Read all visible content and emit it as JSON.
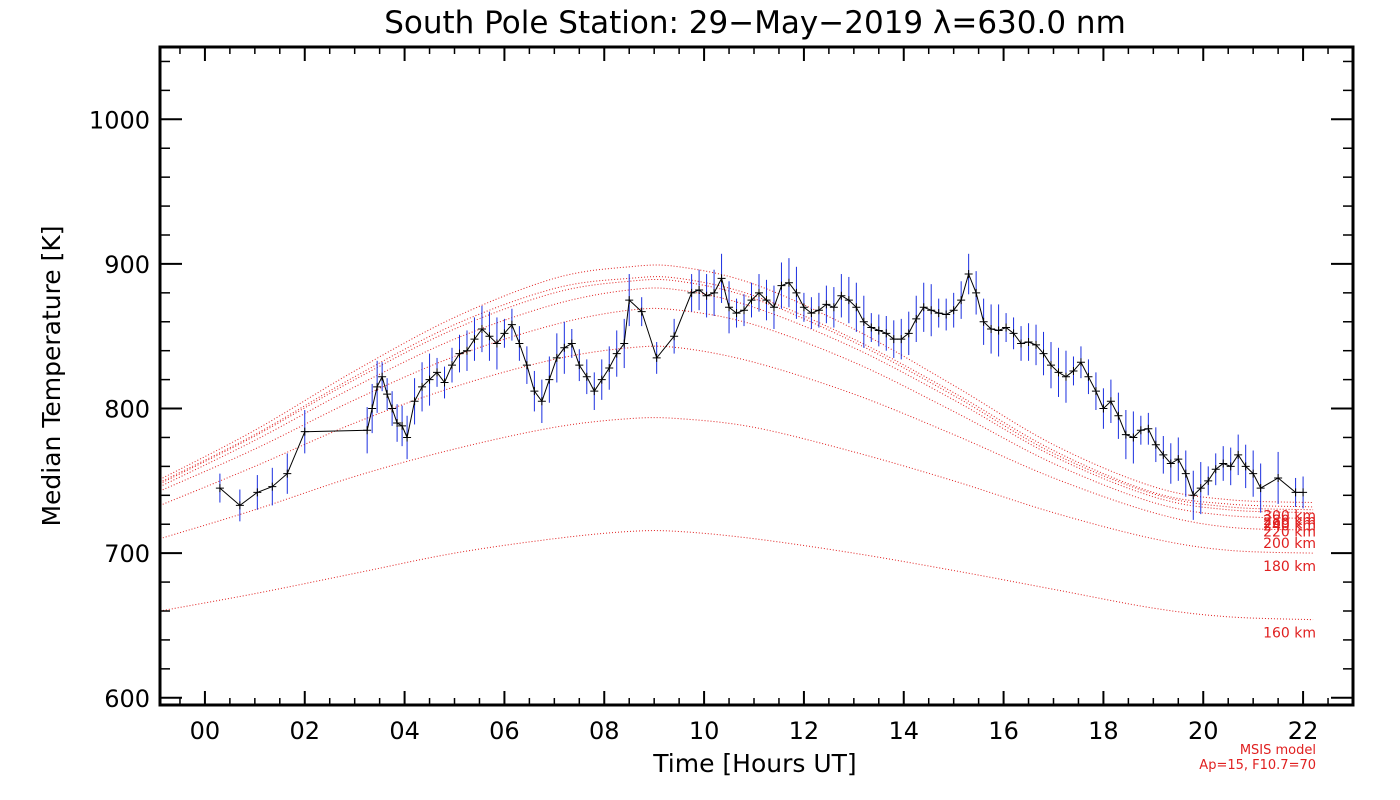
{
  "chart_data": {
    "type": "line",
    "title": "South Pole Station: 29−May−2019 λ=630.0 nm",
    "xlabel": "Time [Hours UT]",
    "ylabel": "Median Temperature [K]",
    "xlim": [
      -0.9,
      23.0
    ],
    "ylim": [
      595,
      1050
    ],
    "x_ticks": [
      0,
      2,
      4,
      6,
      8,
      10,
      12,
      14,
      16,
      18,
      20,
      22
    ],
    "x_tick_labels": [
      "00",
      "02",
      "04",
      "06",
      "08",
      "10",
      "12",
      "14",
      "16",
      "18",
      "20",
      "22"
    ],
    "y_ticks": [
      600,
      700,
      800,
      900,
      1000
    ],
    "y_tick_labels": [
      "600",
      "700",
      "800",
      "900",
      "1000"
    ],
    "colors": {
      "data": "#000000",
      "error_bars": "#1a2ee0",
      "model": "#e02020"
    },
    "observed": {
      "x": [
        0.3,
        0.7,
        1.05,
        1.35,
        1.65,
        2.0,
        3.25,
        3.35,
        3.45,
        3.55,
        3.65,
        3.75,
        3.85,
        3.95,
        4.05,
        4.2,
        4.35,
        4.5,
        4.65,
        4.8,
        4.95,
        5.1,
        5.25,
        5.4,
        5.55,
        5.7,
        5.85,
        6.0,
        6.15,
        6.3,
        6.45,
        6.6,
        6.75,
        6.9,
        7.05,
        7.2,
        7.35,
        7.5,
        7.65,
        7.8,
        7.95,
        8.1,
        8.25,
        8.4,
        8.5,
        8.75,
        9.05,
        9.4,
        9.75,
        9.9,
        10.05,
        10.2,
        10.35,
        10.5,
        10.65,
        10.8,
        10.95,
        11.1,
        11.25,
        11.4,
        11.55,
        11.7,
        11.85,
        12.0,
        12.15,
        12.3,
        12.45,
        12.6,
        12.75,
        12.9,
        13.05,
        13.2,
        13.35,
        13.5,
        13.65,
        13.8,
        13.95,
        14.1,
        14.25,
        14.4,
        14.55,
        14.7,
        14.85,
        15.0,
        15.15,
        15.3,
        15.45,
        15.6,
        15.75,
        15.9,
        16.05,
        16.2,
        16.35,
        16.5,
        16.65,
        16.8,
        16.95,
        17.1,
        17.25,
        17.4,
        17.55,
        17.7,
        17.85,
        18.0,
        18.15,
        18.3,
        18.45,
        18.6,
        18.75,
        18.9,
        19.05,
        19.2,
        19.35,
        19.5,
        19.65,
        19.8,
        19.95,
        20.1,
        20.25,
        20.4,
        20.55,
        20.7,
        20.85,
        21.0,
        21.15,
        21.5,
        21.85,
        22.0
      ],
      "y": [
        745,
        733,
        742,
        746,
        755,
        784,
        785,
        800,
        815,
        822,
        810,
        800,
        790,
        788,
        780,
        805,
        815,
        820,
        825,
        818,
        830,
        838,
        840,
        848,
        855,
        850,
        845,
        852,
        858,
        845,
        830,
        812,
        805,
        820,
        835,
        842,
        845,
        830,
        822,
        812,
        820,
        828,
        838,
        845,
        875,
        867,
        835,
        850,
        880,
        882,
        878,
        880,
        890,
        870,
        866,
        868,
        875,
        880,
        875,
        870,
        885,
        887,
        880,
        870,
        866,
        868,
        872,
        870,
        878,
        875,
        870,
        860,
        856,
        854,
        852,
        848,
        848,
        852,
        862,
        870,
        868,
        866,
        865,
        868,
        875,
        893,
        880,
        860,
        855,
        854,
        856,
        852,
        845,
        846,
        844,
        838,
        830,
        825,
        822,
        826,
        832,
        822,
        812,
        800,
        805,
        795,
        782,
        780,
        785,
        786,
        775,
        768,
        762,
        765,
        755,
        740,
        745,
        750,
        758,
        762,
        760,
        768,
        760,
        755,
        745,
        752,
        742,
        742
      ]
    },
    "model_series": [
      {
        "name": "160 km",
        "x": [
          -0.9,
          1,
          3,
          5,
          7,
          8.5,
          9.5,
          11,
          13,
          15,
          17,
          19,
          20.5,
          22.2
        ],
        "y": [
          660,
          672,
          686,
          700,
          710,
          715,
          715,
          710,
          700,
          688,
          675,
          662,
          656,
          654
        ]
      },
      {
        "name": "180 km",
        "x": [
          -0.9,
          1,
          3,
          5,
          7,
          8.5,
          9.5,
          11,
          13,
          15,
          17,
          19,
          20.5,
          22.2
        ],
        "y": [
          710,
          730,
          753,
          772,
          787,
          793,
          793,
          787,
          770,
          750,
          728,
          710,
          702,
          700
        ]
      },
      {
        "name": "200 km",
        "x": [
          -0.9,
          1,
          3,
          5,
          7,
          8.5,
          9.5,
          11,
          13,
          15,
          17,
          19,
          20.5,
          22.2
        ],
        "y": [
          733,
          760,
          790,
          815,
          834,
          842,
          842,
          832,
          810,
          782,
          752,
          728,
          718,
          716
        ]
      },
      {
        "name": "220 km",
        "x": [
          -0.9,
          1,
          3,
          5,
          7,
          8.5,
          9.5,
          11,
          13,
          15,
          17,
          19,
          20.5,
          22.2
        ],
        "y": [
          743,
          772,
          806,
          836,
          858,
          868,
          868,
          858,
          832,
          798,
          762,
          735,
          726,
          724
        ]
      },
      {
        "name": "240 km",
        "x": [
          -0.9,
          1,
          3,
          5,
          7,
          8.5,
          9.5,
          11,
          13,
          15,
          17,
          19,
          20.5,
          22.2
        ],
        "y": [
          746,
          778,
          815,
          848,
          872,
          882,
          882,
          870,
          842,
          806,
          767,
          739,
          730,
          728
        ]
      },
      {
        "name": "260 km",
        "x": [
          -0.9,
          1,
          3,
          5,
          7,
          8.5,
          9.5,
          11,
          13,
          15,
          17,
          19,
          20.5,
          22.2
        ],
        "y": [
          748,
          781,
          820,
          855,
          880,
          888,
          888,
          876,
          846,
          809,
          769,
          741,
          732,
          730
        ]
      },
      {
        "name": "280 km",
        "x": [
          -0.9,
          1,
          3,
          5,
          7,
          8.5,
          9.5,
          11,
          13,
          15,
          17,
          19,
          20.5,
          22.2
        ],
        "y": [
          749,
          782,
          822,
          858,
          883,
          890,
          890,
          878,
          848,
          811,
          771,
          742,
          734,
          732
        ]
      },
      {
        "name": "300 km",
        "x": [
          -0.9,
          1,
          3,
          5,
          7,
          8.5,
          9.5,
          11,
          13,
          15,
          17,
          19,
          20.5,
          22.2
        ],
        "y": [
          751,
          785,
          826,
          863,
          890,
          898,
          898,
          886,
          855,
          816,
          775,
          746,
          737,
          735
        ]
      }
    ],
    "model_note": [
      "MSIS model",
      "Ap=15, F10.7=70"
    ]
  }
}
